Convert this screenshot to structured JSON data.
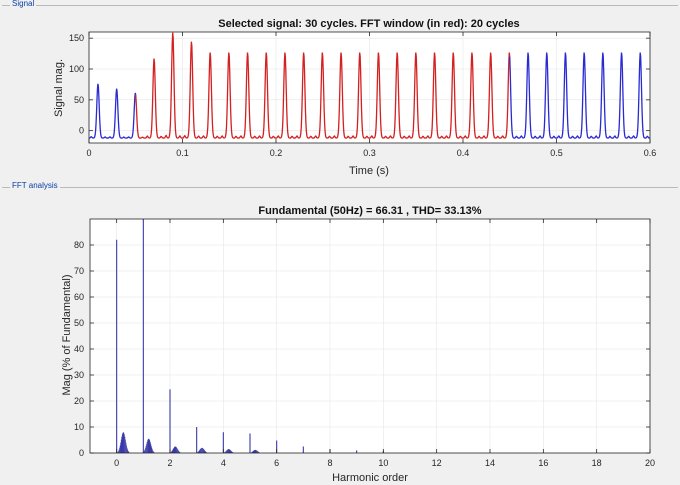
{
  "panels": {
    "signal_label": "Signal",
    "fft_label": "FFT analysis"
  },
  "colors": {
    "signal_outside": "#2a2ad2",
    "signal_window": "#d42020",
    "fft_bars": "#3a3aa8",
    "axes": "#262626",
    "grid": "#e6e6e6"
  },
  "chart_data": [
    {
      "type": "line",
      "title": "Selected signal: 30 cycles. FFT window (in red): 20 cycles",
      "xlabel": "Time (s)",
      "ylabel": "Signal mag.",
      "xlim": [
        0,
        0.6
      ],
      "ylim": [
        -20,
        160
      ],
      "xticks": [
        0,
        0.1,
        0.2,
        0.3,
        0.4,
        0.5,
        0.6
      ],
      "xtick_labels": [
        "0",
        "0.1",
        "0.2",
        "0.3",
        "0.4",
        "0.5",
        "0.6"
      ],
      "yticks": [
        0,
        50,
        100,
        150
      ],
      "ytick_labels": [
        "0",
        "50",
        "100",
        "150"
      ],
      "fundamental_hz": 50,
      "series": [
        {
          "segment": "before window",
          "x_range": [
            0,
            0.05
          ],
          "peaks": [
            78,
            70
          ]
        },
        {
          "segment": "FFT window",
          "x_range": [
            0.05,
            0.45
          ],
          "first_peaks": [
            63,
            120,
            163,
            148
          ],
          "steady_peak": 130
        },
        {
          "segment": "after window",
          "x_range": [
            0.45,
            0.6
          ],
          "steady_peak": 130
        }
      ],
      "trough": -12
    },
    {
      "type": "bar",
      "title": "Fundamental (50Hz) = 66.31 , THD= 33.13%",
      "xlabel": "Harmonic order",
      "ylabel": "Mag (% of Fundamental)",
      "xlim": [
        -1,
        20
      ],
      "ylim": [
        0,
        90
      ],
      "xticks": [
        0,
        2,
        4,
        6,
        8,
        10,
        12,
        14,
        16,
        18,
        20
      ],
      "xtick_labels": [
        "0",
        "2",
        "4",
        "6",
        "8",
        "10",
        "12",
        "14",
        "16",
        "18",
        "20"
      ],
      "yticks": [
        0,
        10,
        20,
        30,
        40,
        50,
        60,
        70,
        80
      ],
      "ytick_labels": [
        "0",
        "10",
        "20",
        "30",
        "40",
        "50",
        "60",
        "70",
        "80"
      ],
      "harmonics": [
        {
          "order": 0,
          "mag": 82
        },
        {
          "order": 1,
          "mag": 90
        },
        {
          "order": 2,
          "mag": 24.5
        },
        {
          "order": 3,
          "mag": 10
        },
        {
          "order": 4,
          "mag": 8
        },
        {
          "order": 5,
          "mag": 7.5
        },
        {
          "order": 6,
          "mag": 4.8
        },
        {
          "order": 7,
          "mag": 2.5
        },
        {
          "order": 8,
          "mag": 1.5
        },
        {
          "order": 9,
          "mag": 1.0
        },
        {
          "order": 10,
          "mag": 0.8
        }
      ],
      "interharmonic_humps": [
        {
          "center": 0.25,
          "peak": 8
        },
        {
          "center": 1.2,
          "peak": 5.5
        },
        {
          "center": 2.2,
          "peak": 2.5
        },
        {
          "center": 3.2,
          "peak": 2
        },
        {
          "center": 4.2,
          "peak": 1.5
        },
        {
          "center": 5.2,
          "peak": 1.2
        }
      ]
    }
  ]
}
